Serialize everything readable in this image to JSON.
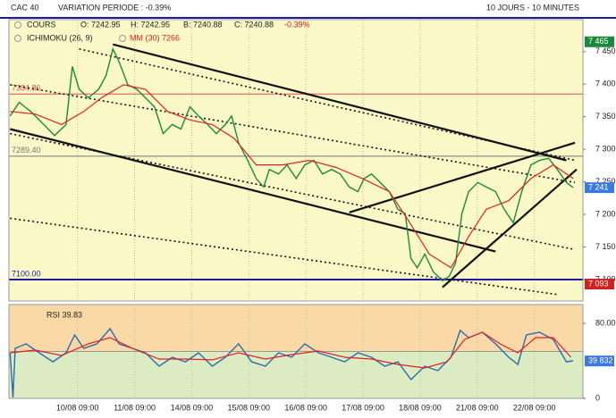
{
  "chart_data": [
    {
      "type": "line",
      "title": "CAC 40",
      "subtitle": "VARIATION PERIODE : -0.39%",
      "period": "10 JOURS - 10 MINUTES",
      "info": [
        "O: 7242.95",
        "H: 7242.95",
        "B: 7240.88",
        "C: 7240.88",
        "-0.39%"
      ],
      "indicator": "ICHIMOKU (26, 9)",
      "series": [
        {
          "name": "COURS",
          "color": "#1a8a3a",
          "x": [
            -0.18,
            -0.02,
            0.18,
            0.41,
            0.6,
            0.8,
            0.91,
            1.03,
            1.19,
            1.37,
            1.5,
            1.62,
            1.73,
            1.88,
            2.04,
            2.19,
            2.35,
            2.5,
            2.66,
            2.81,
            2.97,
            3.12,
            3.28,
            3.43,
            3.59,
            3.7,
            3.82,
            3.98,
            4.13,
            4.26,
            4.36,
            4.52,
            4.67,
            4.83,
            4.98,
            5.14,
            5.29,
            5.45,
            5.6,
            5.76,
            5.91,
            6.02,
            6.15,
            6.3,
            6.46,
            6.61,
            6.74,
            6.84,
            6.95,
            7.08,
            7.23,
            7.39,
            7.51,
            7.62,
            7.73,
            7.85,
            8.01,
            8.16,
            8.32,
            8.47,
            8.63,
            8.78,
            8.94,
            9.09,
            9.25,
            9.4,
            9.56,
            9.68
          ],
          "values": [
            7351,
            7372,
            7358,
            7338,
            7321,
            7338,
            7427,
            7392,
            7379,
            7392,
            7413,
            7454,
            7434,
            7399,
            7392,
            7379,
            7365,
            7324,
            7338,
            7331,
            7365,
            7351,
            7338,
            7324,
            7338,
            7351,
            7310,
            7283,
            7255,
            7242,
            7269,
            7262,
            7276,
            7255,
            7276,
            7283,
            7262,
            7269,
            7262,
            7242,
            7235,
            7255,
            7262,
            7249,
            7235,
            7208,
            7201,
            7132,
            7118,
            7139,
            7112,
            7098,
            7105,
            7125,
            7201,
            7235,
            7249,
            7242,
            7235,
            7208,
            7187,
            7235,
            7276,
            7283,
            7286,
            7269,
            7249,
            7241
          ]
        },
        {
          "name": "MM (30) 7266",
          "color": "#e02020",
          "x": [
            -0.18,
            0.26,
            0.72,
            1.11,
            1.42,
            1.81,
            2.19,
            2.58,
            2.97,
            3.36,
            3.74,
            4.13,
            4.6,
            5.06,
            5.53,
            5.99,
            6.46,
            6.77,
            7.16,
            7.54,
            7.85,
            8.16,
            8.55,
            8.94,
            9.33,
            9.68
          ],
          "values": [
            7358,
            7354,
            7338,
            7358,
            7379,
            7399,
            7392,
            7358,
            7345,
            7338,
            7317,
            7276,
            7276,
            7283,
            7272,
            7255,
            7235,
            7194,
            7139,
            7118,
            7166,
            7208,
            7221,
            7255,
            7276,
            7255
          ]
        }
      ],
      "trendlines": [
        {
          "x": [
            1.62,
            9.56
          ],
          "y": [
            7461,
            7283
          ],
          "style": "solid"
        },
        {
          "x": [
            -0.18,
            8.32
          ],
          "y": [
            7331,
            7143
          ],
          "style": "solid"
        },
        {
          "x": [
            5.76,
            9.71
          ],
          "y": [
            7203,
            7310
          ],
          "style": "solid"
        },
        {
          "x": [
            7.39,
            9.74
          ],
          "y": [
            7088,
            7269
          ],
          "style": "solid"
        },
        {
          "x": [
            1.03,
            9.71
          ],
          "y": [
            7454,
            7283
          ],
          "style": "dashed"
        },
        {
          "x": [
            -0.18,
            9.71
          ],
          "y": [
            7399,
            7249
          ],
          "style": "dashed"
        },
        {
          "x": [
            -0.18,
            9.71
          ],
          "y": [
            7324,
            7146
          ],
          "style": "dashed"
        },
        {
          "x": [
            -0.18,
            9.4
          ],
          "y": [
            7194,
            7077
          ],
          "style": "dashed"
        }
      ],
      "levels": [
        {
          "value": 7384.86,
          "label": "7384.86",
          "color": "#e05050"
        },
        {
          "value": 7289.4,
          "label": "7289.40",
          "color": "#777777"
        },
        {
          "value": 7100,
          "label": "7100.00",
          "color": "#1a1aa0"
        }
      ],
      "markers": [
        {
          "value": 7465,
          "label": "7 465",
          "color": "#1a8a3a"
        },
        {
          "value": 7241,
          "label": "7 241",
          "color": "#3a7ae0"
        },
        {
          "value": 7093,
          "label": "7 093",
          "color": "#d02020"
        }
      ],
      "xlim": [
        -0.2,
        9.85
      ],
      "xticks": [
        1,
        2,
        3,
        4,
        5,
        6,
        7,
        8,
        9
      ],
      "ylim": [
        7067,
        7499
      ],
      "yticks": [
        {
          "value": 7100,
          "label": "7 100"
        },
        {
          "value": 7150,
          "label": "7 150"
        },
        {
          "value": 7200,
          "label": "7 200"
        },
        {
          "value": 7250,
          "label": "7 250"
        },
        {
          "value": 7300,
          "label": "7 300"
        },
        {
          "value": 7350,
          "label": "7 350"
        },
        {
          "value": 7400,
          "label": "7 400"
        },
        {
          "value": 7450,
          "label": "7 450"
        }
      ]
    },
    {
      "type": "line",
      "title": "RSI 39.83",
      "series": [
        {
          "name": "RSI",
          "color": "#2a6ab0",
          "x": [
            -0.18,
            -0.13,
            -0.09,
            0.1,
            0.33,
            0.57,
            0.8,
            0.95,
            1.11,
            1.34,
            1.57,
            1.73,
            1.96,
            2.19,
            2.43,
            2.66,
            2.89,
            3.12,
            3.36,
            3.59,
            3.82,
            4.05,
            4.29,
            4.52,
            4.75,
            4.98,
            5.22,
            5.45,
            5.68,
            5.91,
            6.15,
            6.38,
            6.61,
            6.84,
            7.08,
            7.31,
            7.54,
            7.7,
            7.85,
            8.09,
            8.32,
            8.55,
            8.71,
            8.86,
            9.09,
            9.33,
            9.56,
            9.68
          ],
          "values": [
            48.6,
            1.0,
            53.3,
            58.1,
            48.6,
            39.0,
            48.6,
            67.6,
            53.3,
            58.1,
            74.3,
            58.1,
            53.3,
            48.6,
            34.3,
            43.8,
            39.0,
            48.6,
            34.3,
            43.8,
            58.1,
            39.0,
            34.3,
            48.6,
            43.8,
            58.1,
            48.6,
            43.8,
            39.0,
            48.6,
            43.8,
            34.3,
            39.0,
            20.0,
            34.3,
            29.5,
            43.8,
            72.4,
            64.8,
            70.5,
            58.1,
            43.8,
            36.2,
            67.6,
            70.5,
            62.9,
            39.0,
            40.0
          ]
        },
        {
          "name": "MM",
          "color": "#e02020",
          "x": [
            -0.18,
            0.26,
            0.72,
            1.19,
            1.57,
            1.96,
            2.43,
            2.89,
            3.36,
            3.82,
            4.29,
            4.75,
            5.22,
            5.68,
            6.15,
            6.61,
            7.08,
            7.47,
            7.78,
            8.09,
            8.4,
            8.71,
            9.02,
            9.33,
            9.64
          ],
          "values": [
            48.6,
            51.4,
            45.7,
            58.1,
            64.8,
            53.3,
            41.9,
            41.9,
            41.0,
            48.6,
            41.9,
            46.7,
            50.5,
            43.8,
            41.9,
            36.2,
            32.4,
            39.0,
            62.9,
            70.5,
            58.1,
            48.6,
            64.8,
            64.8,
            43.8
          ]
        }
      ],
      "zones": {
        "threshold": 50,
        "above": "#fbd9a6",
        "below": "#dcecc2"
      },
      "marker": {
        "value": 39.832,
        "label": "39 832",
        "color": "#3a7ae0"
      },
      "xlim": [
        -0.2,
        9.85
      ],
      "xticks": [
        {
          "value": 1,
          "label": "10/08 09:00"
        },
        {
          "value": 2,
          "label": "11/08 09:00"
        },
        {
          "value": 3,
          "label": "14/08 09:00"
        },
        {
          "value": 4,
          "label": "15/08 09:00"
        },
        {
          "value": 5,
          "label": "16/08 09:00"
        },
        {
          "value": 6,
          "label": "17/08 09:00"
        },
        {
          "value": 7,
          "label": "18/08 09:00"
        },
        {
          "value": 8,
          "label": "21/08 09:00"
        },
        {
          "value": 9,
          "label": "22/08 09:00"
        }
      ],
      "ylim": [
        0,
        100
      ],
      "yticks": [
        {
          "value": 80,
          "label": "80.00"
        },
        0
      ]
    }
  ]
}
